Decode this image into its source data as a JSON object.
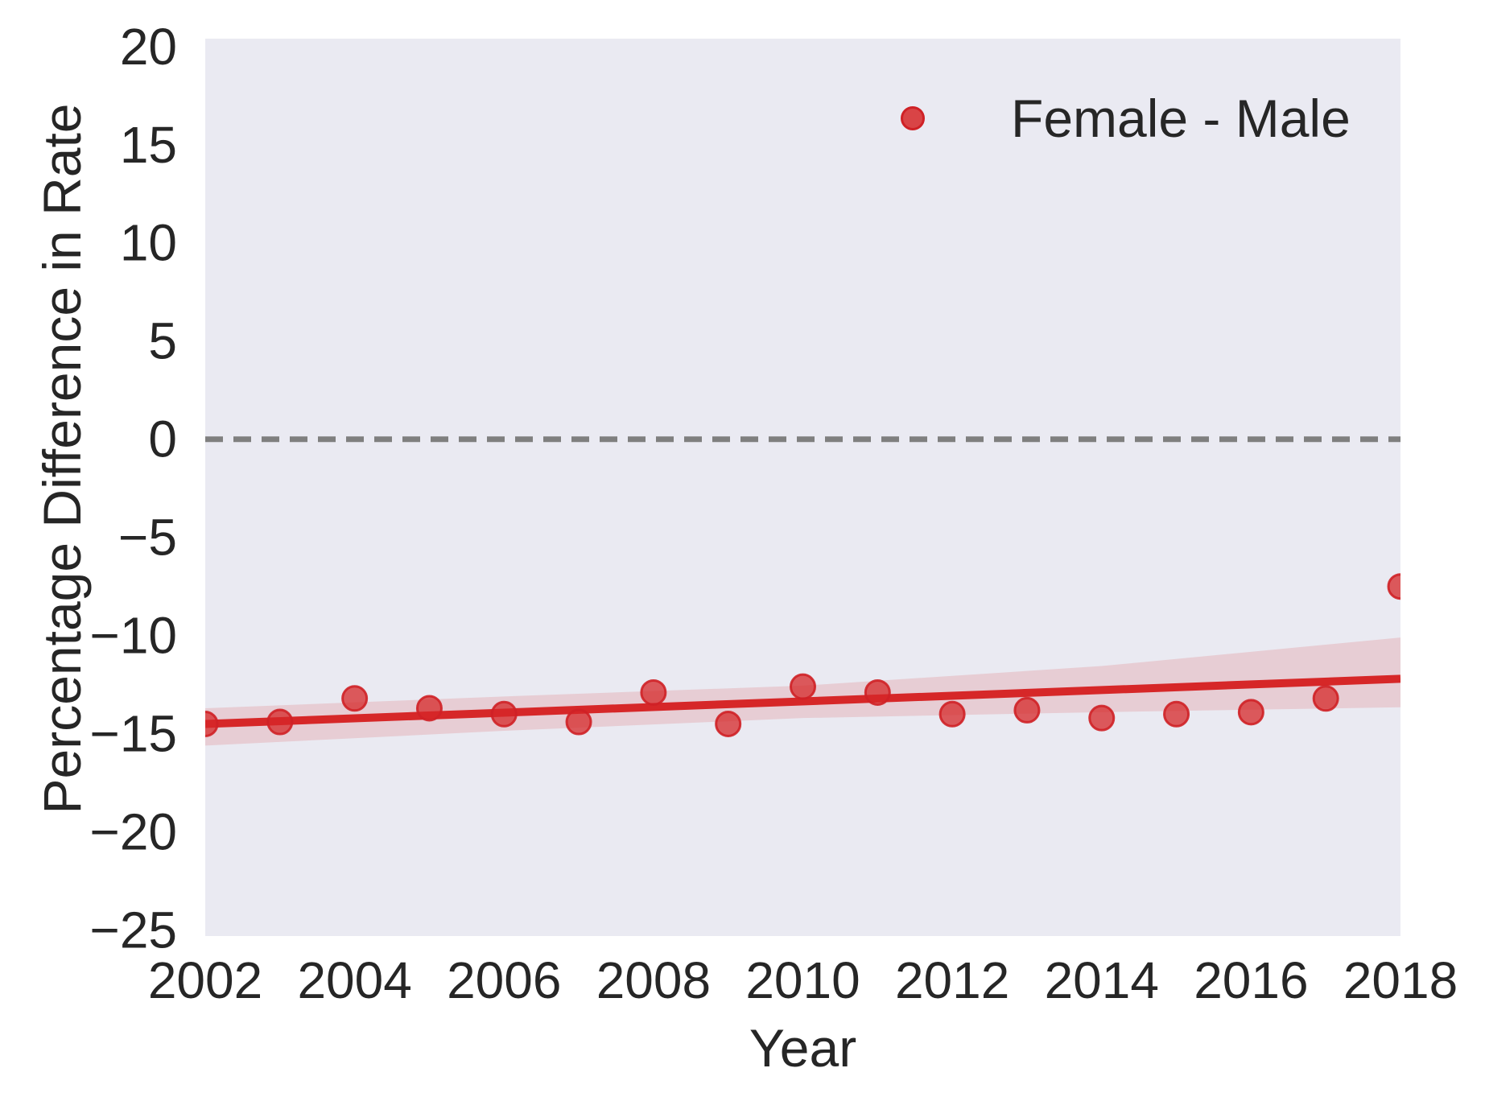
{
  "figure": {
    "background": "#ffffff"
  },
  "chart_data": {
    "type": "scatter",
    "title": "",
    "xlabel": "Year",
    "ylabel": "Percentage Difference in Rate",
    "legend": {
      "label": "Female - Male",
      "position": "upper right"
    },
    "grid": false,
    "plot_background": "#eaeaf2",
    "text_color": "#262626",
    "xlim": [
      2002,
      2018
    ],
    "ylim": [
      -25.3,
      20.4
    ],
    "xticks": [
      2002,
      2004,
      2006,
      2008,
      2010,
      2012,
      2014,
      2016,
      2018
    ],
    "xtick_labels": [
      "2002",
      "2004",
      "2006",
      "2008",
      "2010",
      "2012",
      "2014",
      "2016",
      "2018"
    ],
    "yticks": [
      20,
      15,
      10,
      5,
      0,
      -5,
      -10,
      -15,
      -20,
      -25
    ],
    "ytick_labels": [
      "20",
      "15",
      "10",
      "5",
      "0",
      "−5",
      "−10",
      "−15",
      "−20",
      "−25"
    ],
    "series": [
      {
        "name": "Female - Male",
        "x": [
          2002,
          2003,
          2004,
          2005,
          2006,
          2007,
          2008,
          2009,
          2010,
          2011,
          2012,
          2013,
          2014,
          2015,
          2016,
          2017,
          2018
        ],
        "y": [
          -14.5,
          -14.4,
          -13.2,
          -13.7,
          -14.0,
          -14.4,
          -12.9,
          -14.5,
          -12.6,
          -12.9,
          -14.0,
          -13.8,
          -14.2,
          -14.0,
          -13.9,
          -13.2,
          -7.5
        ]
      }
    ],
    "regression_line": {
      "x": [
        2002,
        2018
      ],
      "y": [
        -14.5,
        -12.2
      ]
    },
    "ci_band": {
      "x": [
        2002,
        2006,
        2010,
        2014,
        2018
      ],
      "top": [
        -13.7,
        -13.1,
        -12.55,
        -11.55,
        -10.1
      ],
      "bottom": [
        -15.6,
        -14.85,
        -14.2,
        -13.9,
        -13.65
      ]
    },
    "zero_line": {
      "value": 0,
      "style": "dashed",
      "color": "#7f7f7f"
    },
    "colors": {
      "point_fill": "#d62728",
      "point_edge": "#cf2126",
      "line": "#d62728",
      "band": "#d62728",
      "band_opacity": 0.15,
      "point_opacity": 0.75
    }
  }
}
